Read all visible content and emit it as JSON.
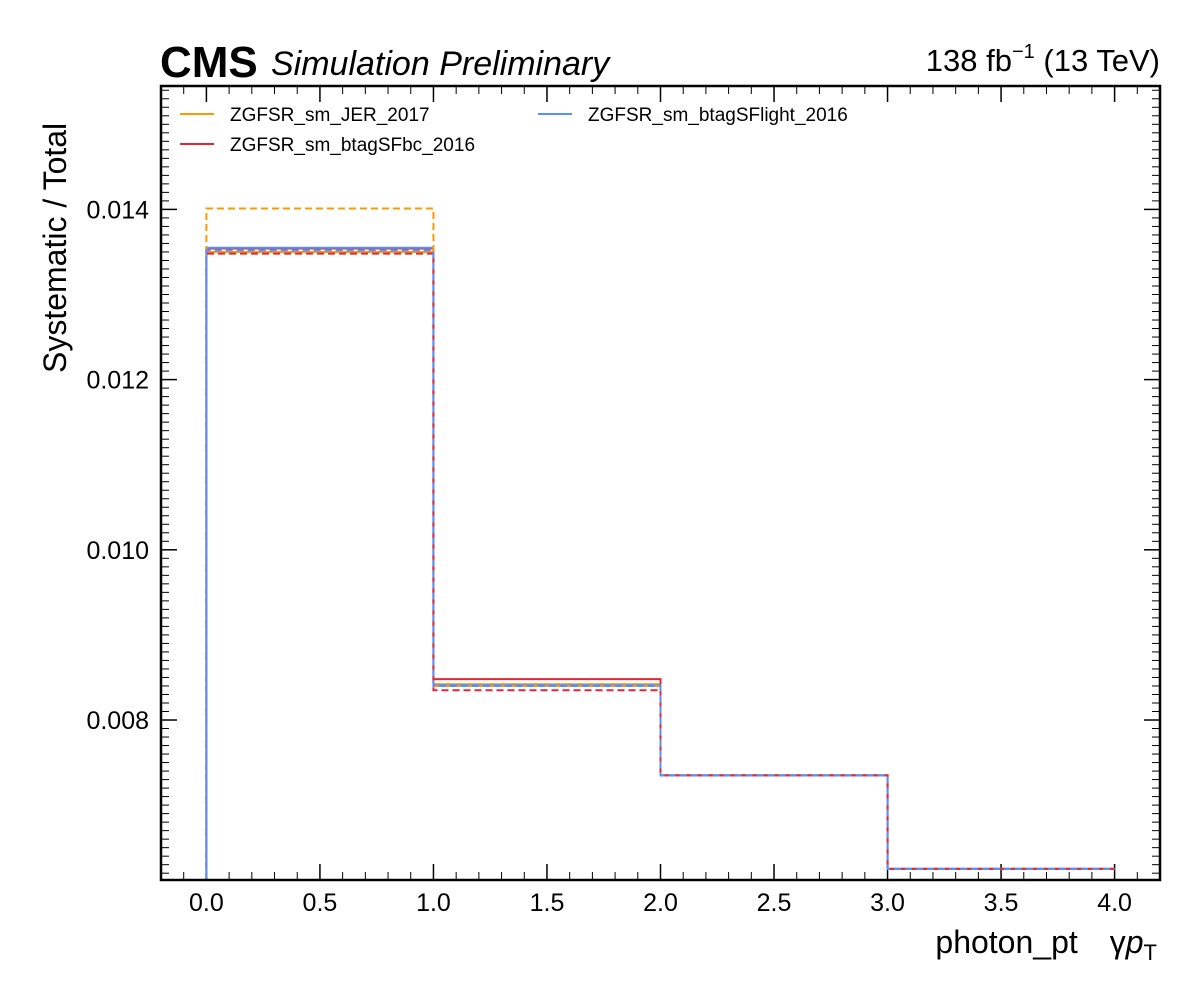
{
  "header": {
    "experiment": "CMS",
    "status": "Simulation Preliminary",
    "lumi_value": "138 fb",
    "lumi_exp": "−1",
    "energy": " (13 TeV)"
  },
  "chart_data": {
    "type": "line",
    "drawstyle": "steps",
    "xlabel": "photon_pt",
    "xlabel_symbol": "γ",
    "xlabel_var": "p",
    "xlabel_sub": "T",
    "ylabel": "Systematic / Total",
    "xlim": [
      -0.2,
      4.2
    ],
    "ylim": [
      0.00612,
      0.01545
    ],
    "xticks": [
      0.0,
      0.5,
      1.0,
      1.5,
      2.0,
      2.5,
      3.0,
      3.5,
      4.0
    ],
    "xtick_labels": [
      "0.0",
      "0.5",
      "1.0",
      "1.5",
      "2.0",
      "2.5",
      "3.0",
      "3.5",
      "4.0"
    ],
    "yticks": [
      0.008,
      0.01,
      0.012,
      0.014
    ],
    "ytick_labels": [
      "0.008",
      "0.010",
      "0.012",
      "0.014"
    ],
    "bin_edges": [
      0,
      1,
      2,
      3,
      4
    ],
    "legend_position": "top-left",
    "legend_columns": 2,
    "grid": false,
    "series": [
      {
        "name": "ZGFSR_sm_JER_2017",
        "color": "#ff9900",
        "style": "solid",
        "values": [
          0.0135,
          0.00842,
          0.00735,
          0.00625
        ]
      },
      {
        "name": "ZGFSR_sm_btagSFbc_2016",
        "color": "#e42536",
        "style": "solid",
        "values": [
          0.01354,
          0.00848,
          0.00735,
          0.00625
        ]
      },
      {
        "name": "ZGFSR_sm_btagSFlight_2016",
        "color": "#5790fc",
        "style": "solid",
        "values": [
          0.01355,
          0.00841,
          0.00735,
          0.00625
        ]
      },
      {
        "name": "",
        "color": "#ff9900",
        "style": "dashed",
        "values": [
          0.01401,
          0.0084,
          0.00735,
          0.00625
        ]
      },
      {
        "name": "",
        "color": "#e42536",
        "style": "dashed",
        "values": [
          0.01348,
          0.00835,
          0.00735,
          0.00625
        ]
      },
      {
        "name": "",
        "color": "#5790fc",
        "style": "dashed",
        "values": [
          0.01352,
          0.0084,
          0.00735,
          0.00625
        ]
      }
    ]
  }
}
